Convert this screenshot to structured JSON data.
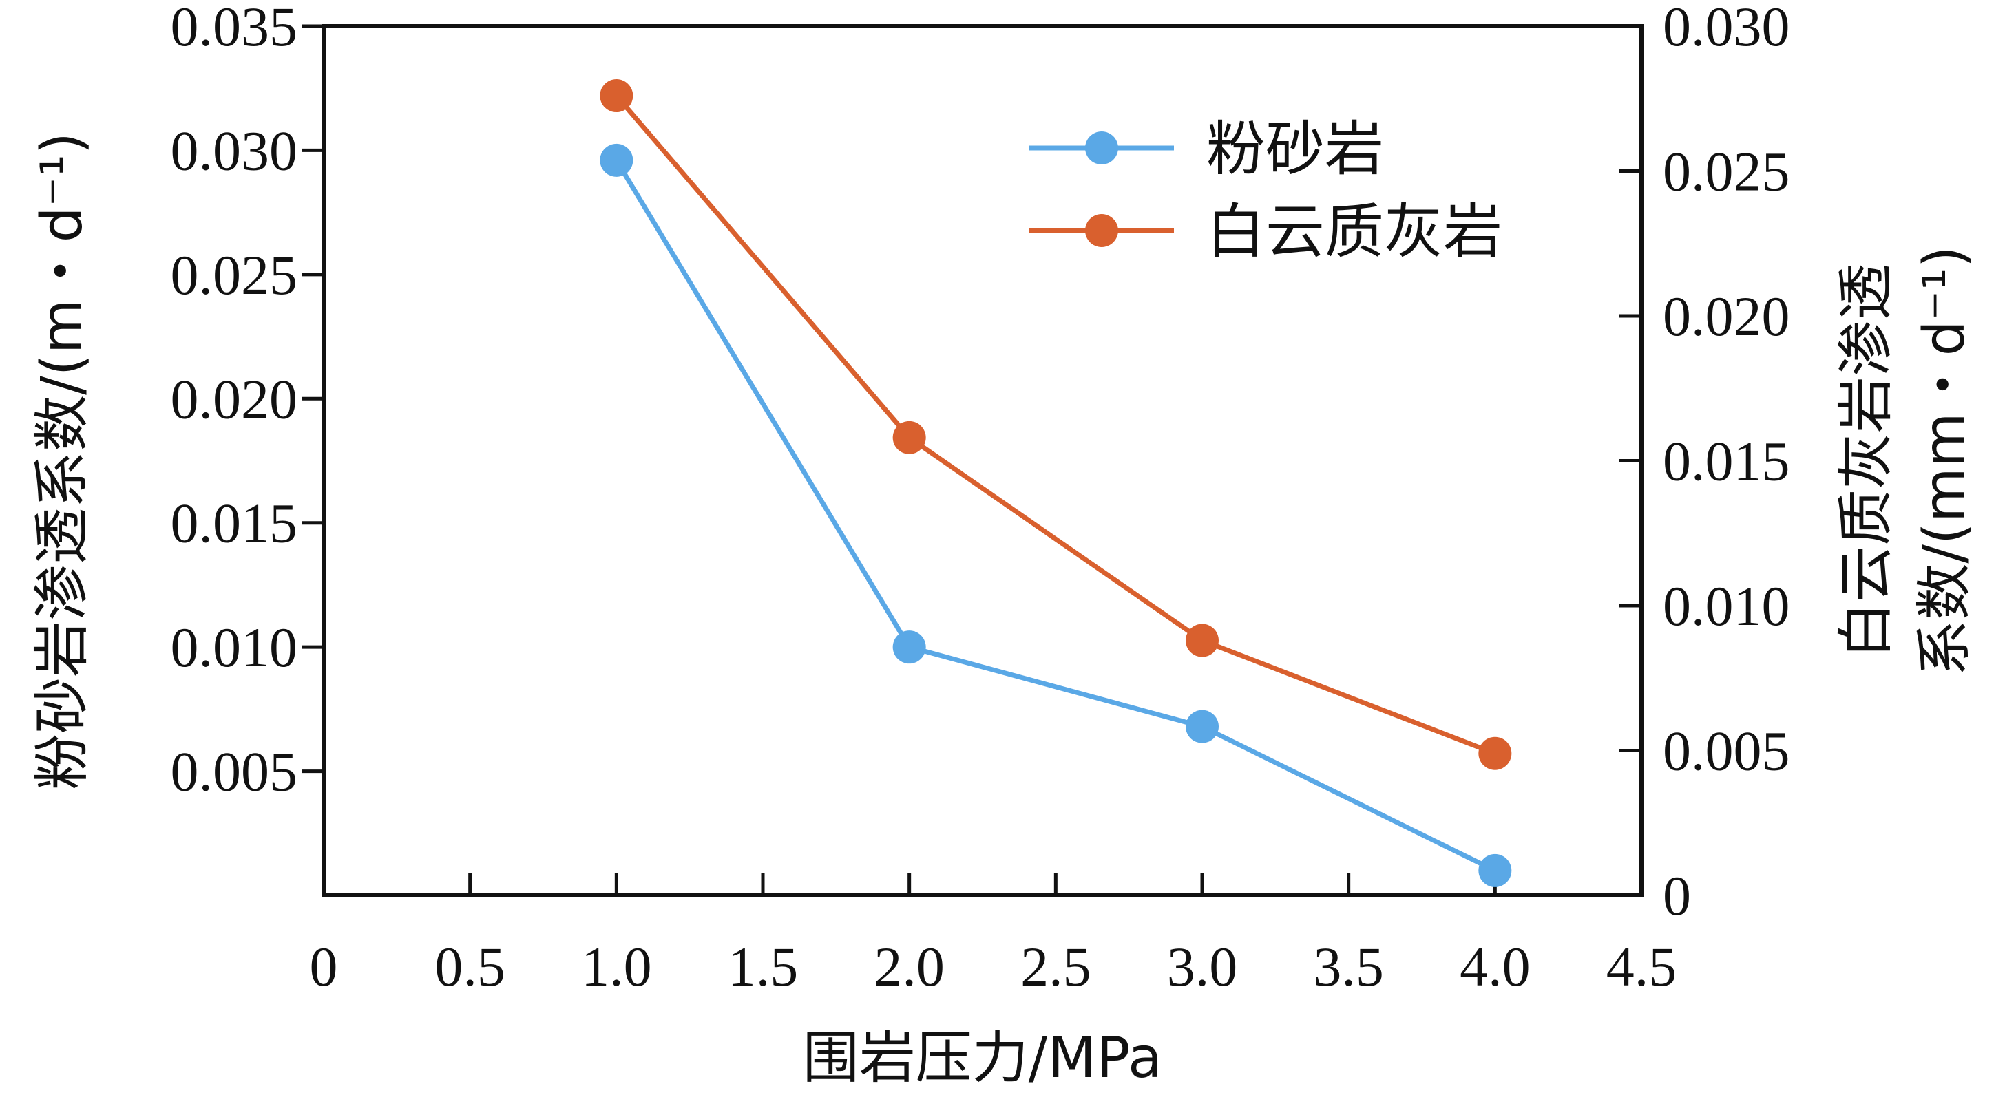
{
  "chart_data": {
    "type": "line",
    "x_axis": {
      "label": "围岩压力/MPa",
      "range": [
        0,
        4.5
      ],
      "tick_values": [
        0,
        0.5,
        1.0,
        1.5,
        2.0,
        2.5,
        3.0,
        3.5,
        4.0,
        4.5
      ],
      "tick_labels": [
        "0",
        "0.5",
        "1.0",
        "1.5",
        "2.0",
        "2.5",
        "3.0",
        "3.5",
        "4.0",
        "4.5"
      ]
    },
    "y_axis_left": {
      "label": "粉砂岩渗透系数/(m・d⁻¹)",
      "range": [
        0,
        0.035
      ],
      "tick_values": [
        0.005,
        0.01,
        0.015,
        0.02,
        0.025,
        0.03,
        0.035
      ],
      "tick_labels": [
        "0.005",
        "0.010",
        "0.015",
        "0.020",
        "0.025",
        "0.030",
        "0.035"
      ]
    },
    "y_axis_right": {
      "label_line1": "白云质灰岩渗透",
      "label_line2": "系数/(mm・d⁻¹)",
      "range": [
        0,
        0.03
      ],
      "tick_values": [
        0,
        0.005,
        0.01,
        0.015,
        0.02,
        0.025,
        0.03
      ],
      "tick_labels": [
        "0",
        "0.005",
        "0.010",
        "0.015",
        "0.020",
        "0.025",
        "0.030"
      ]
    },
    "series": [
      {
        "name": "粉砂岩",
        "axis": "left",
        "color": "#5aa8e6",
        "x": [
          1.0,
          2.0,
          3.0,
          4.0
        ],
        "y": [
          0.0296,
          0.01,
          0.0068,
          0.001
        ]
      },
      {
        "name": "白云质灰岩",
        "axis": "right",
        "color": "#d9602e",
        "x": [
          1.0,
          2.0,
          3.0,
          4.0
        ],
        "y": [
          0.0276,
          0.0158,
          0.0088,
          0.0049
        ]
      }
    ],
    "legend_position": "top-right",
    "grid": false
  }
}
